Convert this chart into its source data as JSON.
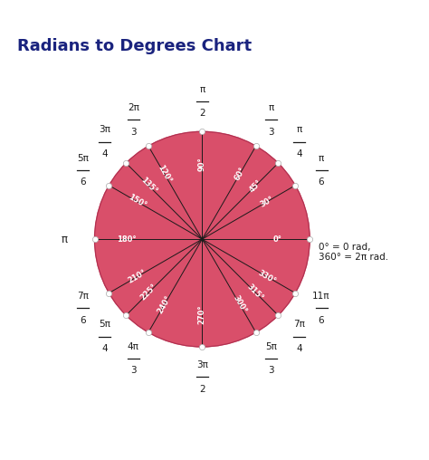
{
  "title": "Radians to Degrees Chart",
  "title_color": "#1a237e",
  "title_fontsize": 13,
  "circle_color": "#d94f6a",
  "line_color": "#1a1a1a",
  "bg_color": "#ffffff",
  "annotation_color": "#1a1a1a",
  "note_text": "0° = 0 rad,\n360° = 2π rad.",
  "angles_deg": [
    0,
    30,
    45,
    60,
    90,
    120,
    135,
    150,
    180,
    210,
    225,
    240,
    270,
    300,
    315,
    330
  ],
  "degree_labels": [
    "0°",
    "30°",
    "45°",
    "60°",
    "90°",
    "120°",
    "135°",
    "150°",
    "180°",
    "210°",
    "225°",
    "240°",
    "270°",
    "300°",
    "315°",
    "330°"
  ],
  "radian_numerators": [
    "",
    "π",
    "π",
    "π",
    "π",
    "2π",
    "3π",
    "5π",
    "π",
    "7π",
    "5π",
    "4π",
    "3π",
    "5π",
    "7π",
    "11π"
  ],
  "radian_denominators": [
    "",
    "6",
    "4",
    "3",
    "2",
    "3",
    "4",
    "6",
    "",
    "6",
    "4",
    "3",
    "2",
    "3",
    "4",
    "6"
  ]
}
